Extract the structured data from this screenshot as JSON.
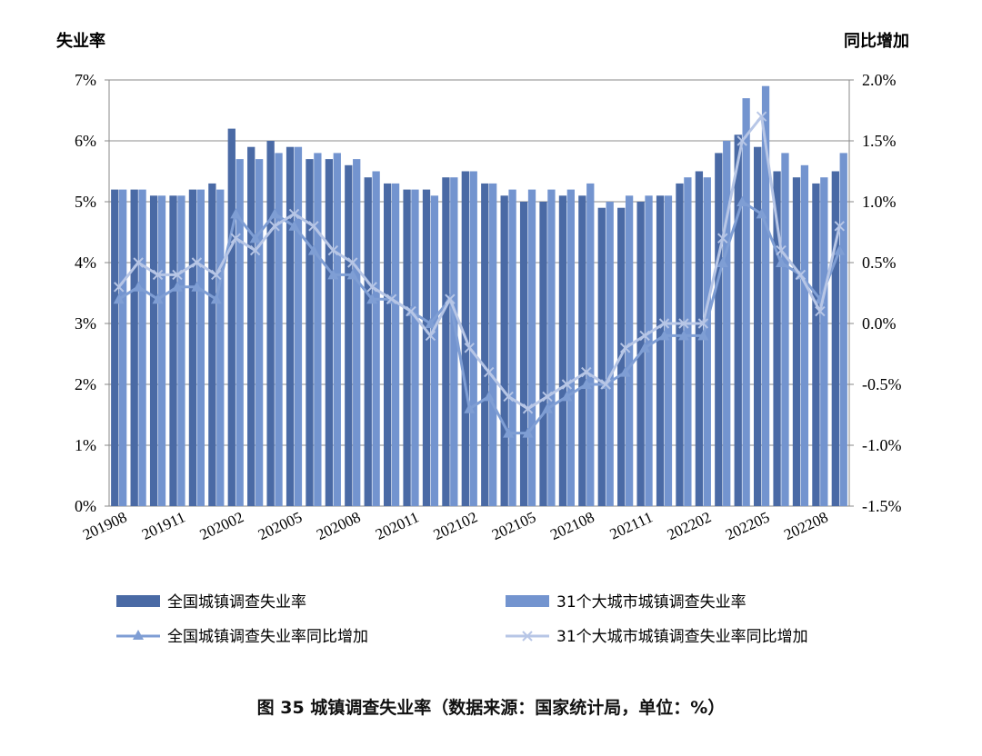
{
  "chart_data": {
    "type": "bar",
    "left_axis_title": "失业率",
    "right_axis_title": "同比增加",
    "left_ticks": [
      "0%",
      "1%",
      "2%",
      "3%",
      "4%",
      "5%",
      "6%",
      "7%"
    ],
    "right_ticks": [
      "-1.5%",
      "-1.0%",
      "-0.5%",
      "0.0%",
      "0.5%",
      "1.0%",
      "1.5%",
      "2.0%"
    ],
    "ylim_left": [
      0,
      7
    ],
    "ylim_right": [
      -1.5,
      2.0
    ],
    "categories": [
      "201908",
      "201909",
      "201910",
      "201911",
      "201912",
      "202001",
      "202002",
      "202003",
      "202004",
      "202005",
      "202006",
      "202007",
      "202008",
      "202009",
      "202010",
      "202011",
      "202012",
      "202101",
      "202102",
      "202103",
      "202104",
      "202105",
      "202106",
      "202107",
      "202108",
      "202109",
      "202110",
      "202111",
      "202112",
      "202201",
      "202202",
      "202203",
      "202204",
      "202205",
      "202206",
      "202207",
      "202208",
      "202209"
    ],
    "x_tick_labels": [
      "201908",
      "201911",
      "202002",
      "202005",
      "202008",
      "202011",
      "202102",
      "202105",
      "202108",
      "202111",
      "202202",
      "202205",
      "202208"
    ],
    "series": [
      {
        "name": "全国城镇调查失业率",
        "kind": "bar",
        "axis": "left",
        "color": "#4a6aa5",
        "values": [
          5.2,
          5.2,
          5.1,
          5.1,
          5.2,
          5.3,
          6.2,
          5.9,
          6.0,
          5.9,
          5.7,
          5.7,
          5.6,
          5.4,
          5.3,
          5.2,
          5.2,
          5.4,
          5.5,
          5.3,
          5.1,
          5.0,
          5.0,
          5.1,
          5.1,
          4.9,
          4.9,
          5.0,
          5.1,
          5.3,
          5.5,
          5.8,
          6.1,
          5.9,
          5.5,
          5.4,
          5.3,
          5.5
        ]
      },
      {
        "name": "31个大城市城镇调查失业率",
        "kind": "bar",
        "axis": "left",
        "color": "#7394cf",
        "values": [
          5.2,
          5.2,
          5.1,
          5.1,
          5.2,
          5.2,
          5.7,
          5.7,
          5.8,
          5.9,
          5.8,
          5.8,
          5.7,
          5.5,
          5.3,
          5.2,
          5.1,
          5.4,
          5.5,
          5.3,
          5.2,
          5.2,
          5.2,
          5.2,
          5.3,
          5.0,
          5.1,
          5.1,
          5.1,
          5.4,
          5.4,
          6.0,
          6.7,
          6.9,
          5.8,
          5.6,
          5.4,
          5.8
        ]
      },
      {
        "name": "全国城镇调查失业率同比增加",
        "kind": "line",
        "axis": "right",
        "marker": "triangle",
        "color": "#7f9ed4",
        "values": [
          0.2,
          0.3,
          0.2,
          0.3,
          0.3,
          0.2,
          0.9,
          0.7,
          0.9,
          0.8,
          0.6,
          0.4,
          0.4,
          0.2,
          0.2,
          0.1,
          0.0,
          0.2,
          -0.7,
          -0.6,
          -0.9,
          -0.9,
          -0.7,
          -0.6,
          -0.5,
          -0.5,
          -0.4,
          -0.2,
          -0.1,
          -0.1,
          -0.1,
          0.5,
          1.0,
          0.9,
          0.5,
          0.4,
          0.2,
          0.6
        ]
      },
      {
        "name": "31个大城市城镇调查失业率同比增加",
        "kind": "line",
        "axis": "right",
        "marker": "x",
        "color": "#b7c6e6",
        "values": [
          0.3,
          0.5,
          0.4,
          0.4,
          0.5,
          0.4,
          0.7,
          0.6,
          0.8,
          0.9,
          0.8,
          0.6,
          0.5,
          0.3,
          0.2,
          0.1,
          -0.1,
          0.2,
          -0.2,
          -0.4,
          -0.6,
          -0.7,
          -0.6,
          -0.5,
          -0.4,
          -0.5,
          -0.2,
          -0.1,
          0.0,
          0.0,
          0.0,
          0.7,
          1.5,
          1.7,
          0.6,
          0.4,
          0.1,
          0.8
        ]
      }
    ],
    "grid": true,
    "legend_position": "bottom"
  },
  "caption": "图 35  城镇调查失业率（数据来源：国家统计局，单位：%）"
}
